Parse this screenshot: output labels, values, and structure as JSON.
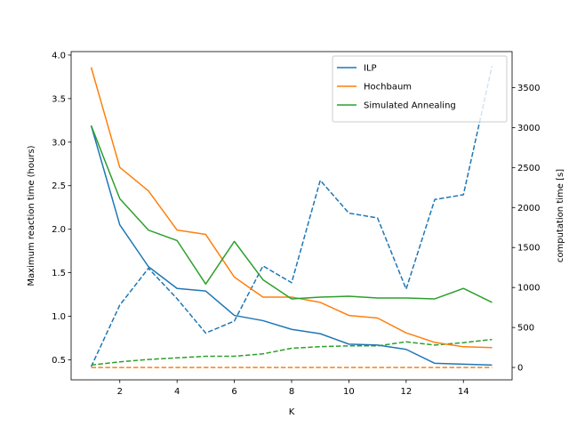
{
  "chart_data": {
    "type": "line",
    "title": "",
    "xlabel": "K",
    "ylabel": "Maximum reaction time (hours)",
    "y2label": "computation time [s]",
    "x": [
      1,
      2,
      3,
      4,
      5,
      6,
      7,
      8,
      9,
      10,
      11,
      12,
      13,
      14,
      15
    ],
    "xlim": [
      0.3,
      15.7
    ],
    "ylim": [
      0.27,
      4.04
    ],
    "y2lim": [
      -155,
      3950
    ],
    "xticks": [
      2,
      4,
      6,
      8,
      10,
      12,
      14
    ],
    "yticks": [
      0.5,
      1.0,
      1.5,
      2.0,
      2.5,
      3.0,
      3.5,
      4.0
    ],
    "y2ticks": [
      0,
      500,
      1000,
      1500,
      2000,
      2500,
      3000,
      3500
    ],
    "legend_position": "top-right",
    "series": [
      {
        "name": "ILP",
        "color": "#1f77b4",
        "axis": "left",
        "style": "solid",
        "values": [
          3.19,
          2.05,
          1.57,
          1.32,
          1.29,
          1.01,
          0.95,
          0.85,
          0.8,
          0.68,
          0.67,
          0.62,
          0.46,
          0.45,
          0.44
        ]
      },
      {
        "name": "Hochbaum",
        "color": "#ff7f0e",
        "axis": "left",
        "style": "solid",
        "values": [
          3.86,
          2.71,
          2.44,
          1.99,
          1.94,
          1.45,
          1.22,
          1.22,
          1.16,
          1.01,
          0.98,
          0.81,
          0.7,
          0.65,
          0.64
        ]
      },
      {
        "name": "Simulated Annealing",
        "color": "#2ca02c",
        "axis": "left",
        "style": "solid",
        "values": [
          3.19,
          2.35,
          1.99,
          1.87,
          1.37,
          1.86,
          1.42,
          1.2,
          1.22,
          1.23,
          1.21,
          1.21,
          1.2,
          1.32,
          1.16
        ]
      },
      {
        "color": "#1f77b4",
        "axis": "right",
        "style": "dashed",
        "values": [
          10,
          780,
          1240,
          860,
          430,
          580,
          1270,
          1060,
          2340,
          1930,
          1870,
          980,
          2100,
          2160,
          3770
        ]
      },
      {
        "color": "#ff7f0e",
        "axis": "right",
        "style": "dashed",
        "values": [
          0,
          0,
          0,
          0,
          0,
          0,
          0,
          0,
          0,
          0,
          0,
          0,
          0,
          0,
          0
        ]
      },
      {
        "color": "#2ca02c",
        "axis": "right",
        "style": "dashed",
        "values": [
          30,
          70,
          100,
          120,
          140,
          140,
          170,
          240,
          260,
          270,
          270,
          320,
          280,
          310,
          350
        ]
      }
    ]
  }
}
